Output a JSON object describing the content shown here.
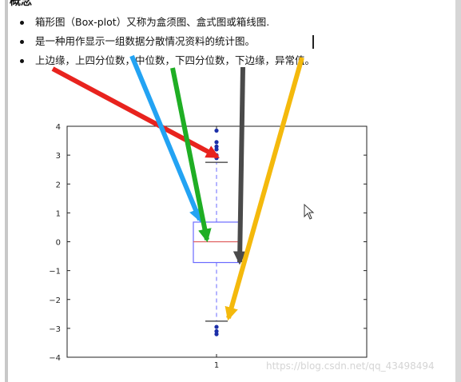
{
  "heading": "概念",
  "bullets": [
    "箱形图（Box-plot）又称为盒须图、盒式图或箱线图.",
    "是一种用作显示一组数据分散情况资料的统计图。",
    "上边缘，上四分位数，中位数，下四分位数，下边缘，异常值。"
  ],
  "watermark": "https://blog.csdn.net/qq_43498494",
  "chart_data": {
    "type": "box",
    "categories": [
      "1"
    ],
    "ylim": [
      -4,
      4
    ],
    "yticks": [
      "4",
      "3",
      "2",
      "1",
      "0",
      "−1",
      "−2",
      "−3",
      "−4"
    ],
    "box": {
      "whisker_high": 2.75,
      "q3": 0.68,
      "median": 0.0,
      "q1": -0.72,
      "whisker_low": -2.75
    },
    "outliers": [
      3.85,
      3.45,
      3.3,
      3.2,
      3.0,
      2.9,
      -2.95,
      -3.1,
      -3.2
    ],
    "colors": {
      "box": "#6a6aff",
      "median": "#e06060",
      "whisker": "#6a6aff",
      "cap": "#333333",
      "outlier": "#1c2fa8"
    },
    "annotation_arrows": [
      {
        "target": "upper-whisker",
        "color": "#e8231e"
      },
      {
        "target": "upper-quartile",
        "color": "#23a3f3"
      },
      {
        "target": "median",
        "color": "#1fae24"
      },
      {
        "target": "lower-quartile",
        "color": "#4a4a4a"
      },
      {
        "target": "lower-whisker",
        "color": "#f4b90c"
      }
    ]
  }
}
